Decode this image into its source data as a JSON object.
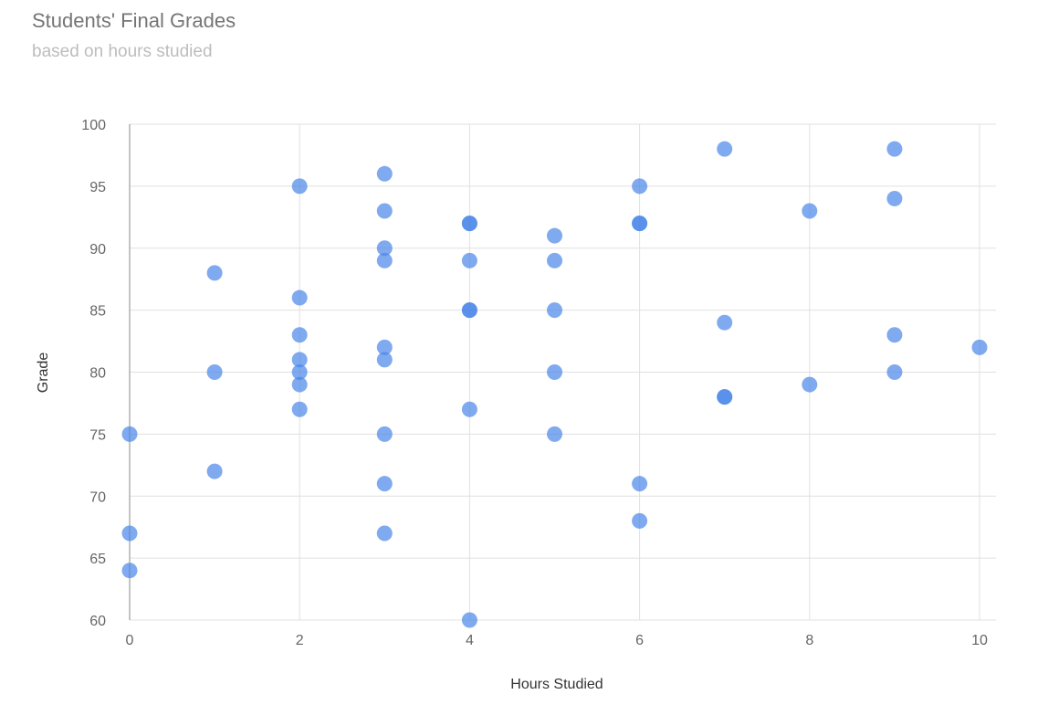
{
  "chart_data": {
    "type": "scatter",
    "title": "Students' Final Grades",
    "subtitle": "based on hours studied",
    "xlabel": "Hours Studied",
    "ylabel": "Grade",
    "xlim": [
      0,
      10
    ],
    "ylim": [
      60,
      100
    ],
    "x_ticks": [
      0,
      2,
      4,
      6,
      8,
      10
    ],
    "y_ticks": [
      60,
      65,
      70,
      75,
      80,
      85,
      90,
      95,
      100
    ],
    "grid": true,
    "legend": "none",
    "point_color": "#4a86e8",
    "points": [
      {
        "x": 0,
        "y": 75
      },
      {
        "x": 0,
        "y": 67
      },
      {
        "x": 0,
        "y": 64
      },
      {
        "x": 1,
        "y": 88
      },
      {
        "x": 1,
        "y": 80
      },
      {
        "x": 1,
        "y": 72
      },
      {
        "x": 2,
        "y": 95
      },
      {
        "x": 2,
        "y": 86
      },
      {
        "x": 2,
        "y": 83
      },
      {
        "x": 2,
        "y": 81
      },
      {
        "x": 2,
        "y": 80
      },
      {
        "x": 2,
        "y": 79
      },
      {
        "x": 2,
        "y": 77
      },
      {
        "x": 3,
        "y": 96
      },
      {
        "x": 3,
        "y": 93
      },
      {
        "x": 3,
        "y": 90
      },
      {
        "x": 3,
        "y": 89
      },
      {
        "x": 3,
        "y": 82
      },
      {
        "x": 3,
        "y": 81
      },
      {
        "x": 3,
        "y": 75
      },
      {
        "x": 3,
        "y": 71
      },
      {
        "x": 3,
        "y": 67
      },
      {
        "x": 4,
        "y": 92
      },
      {
        "x": 4,
        "y": 92
      },
      {
        "x": 4,
        "y": 89
      },
      {
        "x": 4,
        "y": 85
      },
      {
        "x": 4,
        "y": 85
      },
      {
        "x": 4,
        "y": 77
      },
      {
        "x": 4,
        "y": 60
      },
      {
        "x": 5,
        "y": 91
      },
      {
        "x": 5,
        "y": 89
      },
      {
        "x": 5,
        "y": 85
      },
      {
        "x": 5,
        "y": 80
      },
      {
        "x": 5,
        "y": 75
      },
      {
        "x": 6,
        "y": 95
      },
      {
        "x": 6,
        "y": 92
      },
      {
        "x": 6,
        "y": 92
      },
      {
        "x": 6,
        "y": 71
      },
      {
        "x": 6,
        "y": 68
      },
      {
        "x": 7,
        "y": 98
      },
      {
        "x": 7,
        "y": 84
      },
      {
        "x": 7,
        "y": 78
      },
      {
        "x": 7,
        "y": 78
      },
      {
        "x": 8,
        "y": 93
      },
      {
        "x": 8,
        "y": 79
      },
      {
        "x": 9,
        "y": 98
      },
      {
        "x": 9,
        "y": 94
      },
      {
        "x": 9,
        "y": 83
      },
      {
        "x": 9,
        "y": 80
      },
      {
        "x": 10,
        "y": 82
      }
    ]
  }
}
